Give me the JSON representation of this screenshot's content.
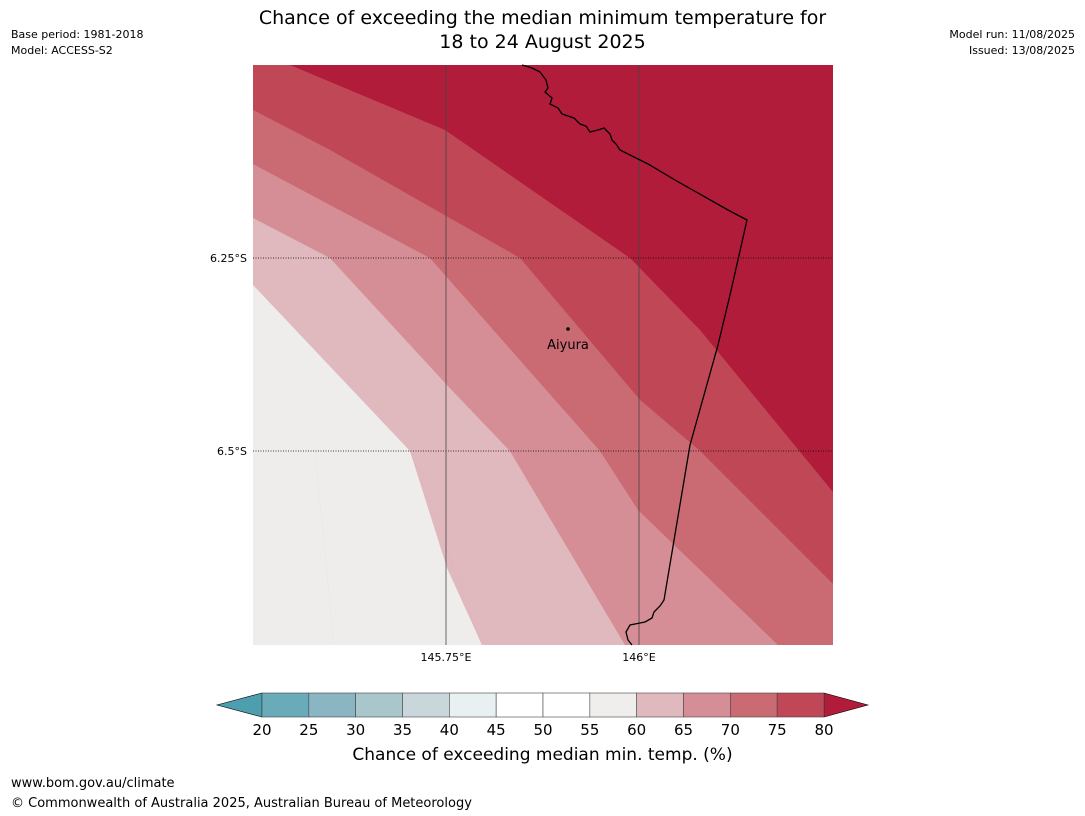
{
  "header": {
    "title_line1": "Chance of exceeding the median minimum temperature for",
    "title_line2": "18 to 24 August 2025",
    "base_period": "Base period: 1981-2018",
    "model": "Model: ACCESS-S2",
    "model_run": "Model run: 11/08/2025",
    "issued": "Issued: 13/08/2025"
  },
  "map": {
    "lat_labels": [
      "6.25°S",
      "6.5°S"
    ],
    "lon_labels": [
      "145.75°E",
      "146°E"
    ],
    "place": {
      "name": "Aiyura"
    },
    "colors": {
      "c55_60": "#eeedeb",
      "c60_65": "#e0b9be",
      "c65_70": "#d68e96",
      "c70_75": "#ca6a73",
      "c75_80": "#c04856",
      "c80p": "#b01c3a"
    }
  },
  "colorbar": {
    "ticks": [
      "20",
      "25",
      "30",
      "35",
      "40",
      "45",
      "50",
      "55",
      "60",
      "65",
      "70",
      "75",
      "80"
    ],
    "colors": [
      "#6aabba",
      "#8ab5c2",
      "#a8c6cc",
      "#c9d7db",
      "#e9f0f2",
      "#ffffff",
      "#ffffff",
      "#efeeec",
      "#e0b9be",
      "#d68e96",
      "#ca6a73",
      "#c04856"
    ],
    "under_color": "#4d9fb0",
    "over_color": "#b01c3a",
    "label": "Chance of exceeding median min. temp. (%)"
  },
  "footer": {
    "url": "www.bom.gov.au/climate",
    "copyright": "© Commonwealth of Australia 2025, Australian Bureau of Meteorology"
  }
}
